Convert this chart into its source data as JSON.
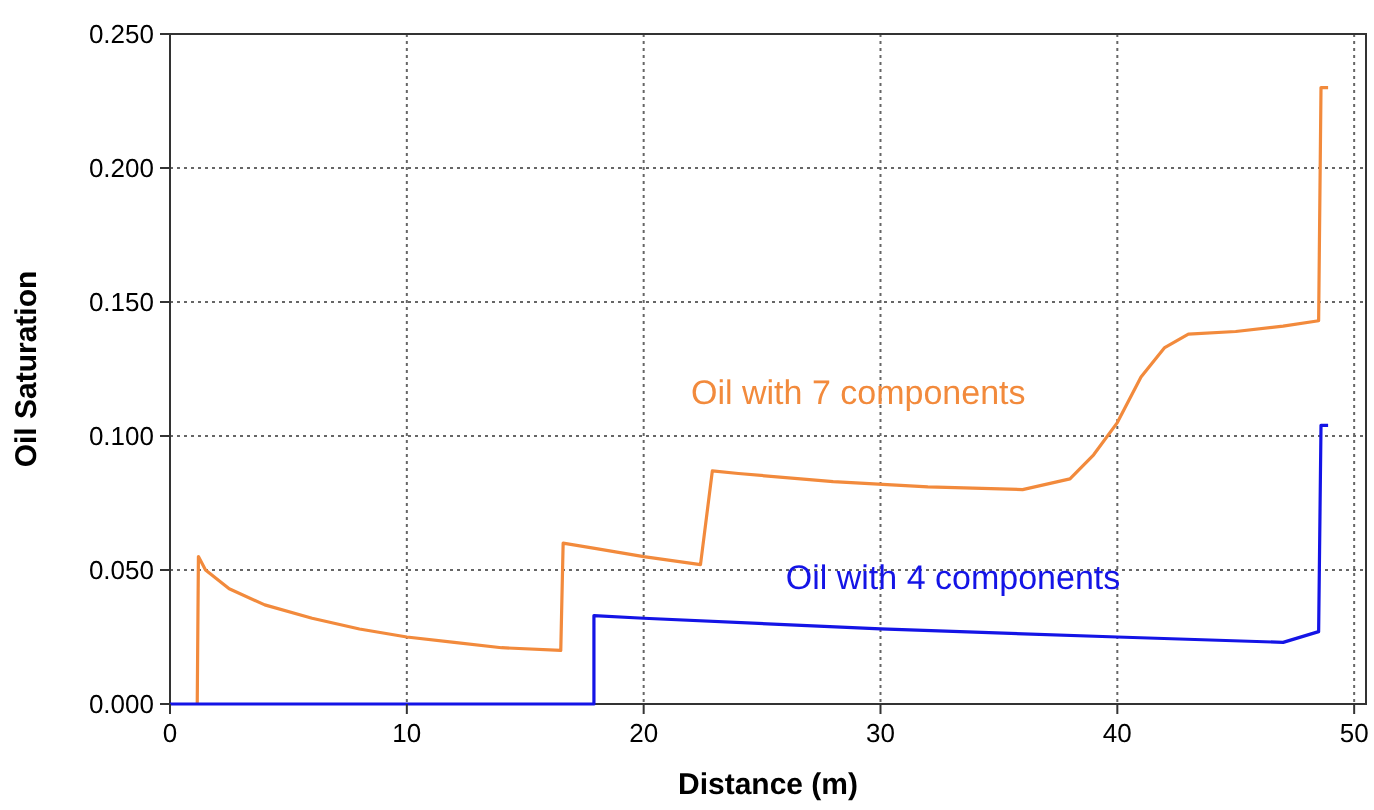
{
  "chart_data": {
    "type": "line",
    "xlabel": "Distance (m)",
    "ylabel": "Oil Saturation",
    "xlim": [
      0,
      50.5
    ],
    "xticks": [
      0,
      10,
      20,
      30,
      40,
      50
    ],
    "ylim": [
      0,
      0.25
    ],
    "yticks": [
      {
        "value": 0,
        "label": "0.000"
      },
      {
        "value": 0.05,
        "label": "0.050"
      },
      {
        "value": 0.1,
        "label": "0.100"
      },
      {
        "value": 0.15,
        "label": "0.150"
      },
      {
        "value": 0.2,
        "label": "0.200"
      },
      {
        "value": 0.25,
        "label": "0.250"
      }
    ],
    "grid": true,
    "line_style": "solid",
    "series": [
      {
        "name": "Oil with 7 components",
        "color": "#f28a3c",
        "x": [
          1.15,
          1.2,
          1.5,
          2.5,
          4,
          6,
          8,
          10,
          12,
          14,
          16.5,
          16.6,
          18,
          20,
          22.4,
          22.9,
          24,
          28,
          32,
          36,
          38,
          39,
          40,
          41,
          42,
          43,
          45,
          47,
          48.5,
          48.6,
          48.9
        ],
        "values": [
          0,
          0.055,
          0.05,
          0.043,
          0.037,
          0.032,
          0.028,
          0.025,
          0.023,
          0.021,
          0.02,
          0.06,
          0.058,
          0.055,
          0.052,
          0.087,
          0.086,
          0.083,
          0.081,
          0.08,
          0.084,
          0.093,
          0.105,
          0.122,
          0.133,
          0.138,
          0.139,
          0.141,
          0.143,
          0.23,
          0.23
        ]
      },
      {
        "name": "Oil with 4 components",
        "color": "#1414e6",
        "x": [
          0,
          17.9,
          17.9,
          20,
          30,
          40,
          47,
          48.5,
          48.6,
          48.9
        ],
        "values": [
          0,
          0,
          0.033,
          0.032,
          0.028,
          0.025,
          0.023,
          0.027,
          0.104,
          0.104
        ]
      }
    ]
  }
}
